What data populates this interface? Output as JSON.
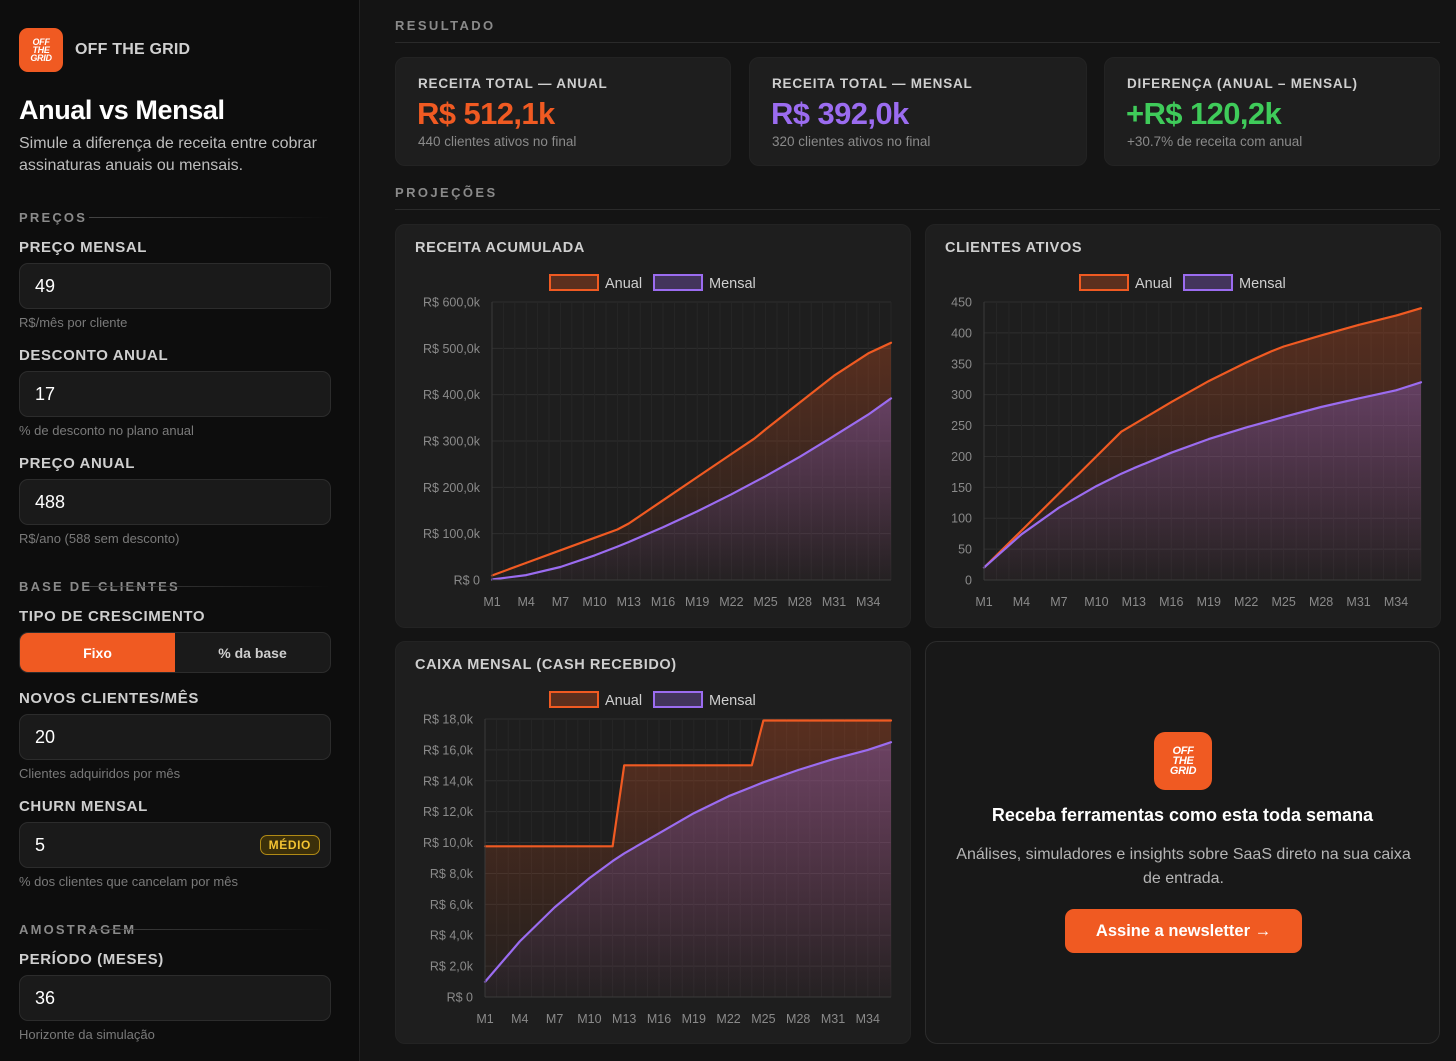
{
  "sidebar": {
    "brand_name": "OFF THE GRID",
    "logo_lines": [
      "OFF",
      "THE",
      "GRID"
    ],
    "title": "Anual vs Mensal",
    "subtitle": "Simule a diferença de receita entre cobrar assinaturas anuais ou mensais.",
    "section_precos": "PREÇOS",
    "preco_mensal": {
      "label": "PREÇO MENSAL",
      "value": "49",
      "hint": "R$/mês por cliente"
    },
    "desconto_anual": {
      "label": "DESCONTO ANUAL",
      "value": "17",
      "hint": "% de desconto no plano anual"
    },
    "preco_anual": {
      "label": "PREÇO ANUAL",
      "value": "488",
      "hint": "R$/ano (588 sem desconto)"
    },
    "section_base": "BASE DE CLIENTES",
    "tipo_crescimento": {
      "label": "TIPO DE CRESCIMENTO",
      "option_fixo": "Fixo",
      "option_base": "% da base",
      "selected": "Fixo"
    },
    "novos_clientes": {
      "label": "NOVOS CLIENTES/MÊS",
      "value": "20",
      "hint": "Clientes adquiridos por mês"
    },
    "churn": {
      "label": "CHURN MENSAL",
      "value": "5",
      "badge": "MÉDIO",
      "hint": "% dos clientes que cancelam por mês"
    },
    "section_amostragem": "AMOSTRAGEM",
    "periodo": {
      "label": "PERÍODO (MESES)",
      "value": "36",
      "hint": "Horizonte da simulação"
    }
  },
  "main": {
    "resultado_header": "RESULTADO",
    "projecoes_header": "PROJEÇÕES",
    "kpis": [
      {
        "label": "RECEITA TOTAL — ANUAL",
        "value": "R$ 512,1k",
        "sub": "440 clientes ativos no final",
        "color": "#f05a22"
      },
      {
        "label": "RECEITA TOTAL — MENSAL",
        "value": "R$ 392,0k",
        "sub": "320 clientes ativos no final",
        "color": "#9b6cf0"
      },
      {
        "label": "DIFERENÇA (ANUAL – MENSAL)",
        "value": "+R$ 120,2k",
        "sub": "+30.7% de receita com anual",
        "color": "#3fcb5a"
      }
    ]
  },
  "colors": {
    "anual": "#f05a22",
    "mensal": "#9b6cf0",
    "accent": "#f05a22"
  },
  "chart_data": [
    {
      "id": "receita",
      "type": "area",
      "title": "RECEITA ACUMULADA",
      "legend": [
        "Anual",
        "Mensal"
      ],
      "x_ticks": [
        "M1",
        "M4",
        "M7",
        "M10",
        "M13",
        "M16",
        "M19",
        "M22",
        "M25",
        "M28",
        "M31",
        "M34"
      ],
      "y_ticks": [
        "R$ 0",
        "R$ 100,0k",
        "R$ 200,0k",
        "R$ 300,0k",
        "R$ 400,0k",
        "R$ 500,0k",
        "R$ 600,0k"
      ],
      "ylim": [
        0,
        600
      ],
      "x": [
        1,
        4,
        7,
        10,
        12,
        13,
        16,
        19,
        22,
        24,
        25,
        28,
        31,
        34,
        36
      ],
      "series": [
        {
          "name": "Anual",
          "values": [
            9.8,
            37,
            64,
            91,
            109,
            122,
            172,
            222,
            272,
            305,
            325,
            383,
            441,
            489,
            512
          ]
        },
        {
          "name": "Mensal",
          "values": [
            1.0,
            10.5,
            28,
            53,
            72,
            82,
            114,
            148,
            185,
            211,
            224,
            266,
            311,
            357,
            392
          ]
        }
      ]
    },
    {
      "id": "clientes",
      "type": "area",
      "title": "CLIENTES ATIVOS",
      "legend": [
        "Anual",
        "Mensal"
      ],
      "x_ticks": [
        "M1",
        "M4",
        "M7",
        "M10",
        "M13",
        "M16",
        "M19",
        "M22",
        "M25",
        "M28",
        "M31",
        "M34"
      ],
      "y_ticks": [
        "0",
        "50",
        "100",
        "150",
        "200",
        "250",
        "300",
        "350",
        "400",
        "450"
      ],
      "ylim": [
        0,
        450
      ],
      "x": [
        1,
        4,
        7,
        10,
        12,
        13,
        16,
        19,
        22,
        24,
        25,
        28,
        31,
        34,
        36
      ],
      "series": [
        {
          "name": "Anual",
          "values": [
            20,
            80,
            140,
            200,
            240,
            252,
            288,
            322,
            352,
            370,
            378,
            396,
            413,
            428,
            440
          ]
        },
        {
          "name": "Mensal",
          "values": [
            20,
            74,
            117,
            152,
            172,
            181,
            206,
            228,
            247,
            258,
            264,
            280,
            294,
            307,
            320
          ]
        }
      ]
    },
    {
      "id": "caixa",
      "type": "area",
      "title": "CAIXA MENSAL (CASH RECEBIDO)",
      "legend": [
        "Anual",
        "Mensal"
      ],
      "x_ticks": [
        "M1",
        "M4",
        "M7",
        "M10",
        "M13",
        "M16",
        "M19",
        "M22",
        "M25",
        "M28",
        "M31",
        "M34"
      ],
      "y_ticks": [
        "R$ 0",
        "R$ 2,0k",
        "R$ 4,0k",
        "R$ 6,0k",
        "R$ 8,0k",
        "R$ 10,0k",
        "R$ 12,0k",
        "R$ 14,0k",
        "R$ 16,0k",
        "R$ 18,0k"
      ],
      "ylim": [
        0,
        18
      ],
      "x": [
        1,
        4,
        7,
        10,
        12,
        13,
        16,
        19,
        22,
        24,
        25,
        28,
        31,
        34,
        36
      ],
      "series": [
        {
          "name": "Anual",
          "values": [
            9.76,
            9.76,
            9.76,
            9.76,
            9.76,
            15.0,
            15.0,
            15.0,
            15.0,
            15.0,
            17.9,
            17.9,
            17.9,
            17.9,
            17.9
          ]
        },
        {
          "name": "Mensal",
          "values": [
            0.98,
            3.6,
            5.8,
            7.7,
            8.8,
            9.3,
            10.6,
            11.9,
            13.0,
            13.6,
            13.9,
            14.7,
            15.4,
            16.0,
            16.5
          ]
        }
      ]
    }
  ],
  "newsletter": {
    "title": "Receba ferramentas como esta toda semana",
    "description": "Análises, simuladores e insights sobre SaaS direto na sua caixa de entrada.",
    "button": "Assine a newsletter →"
  }
}
